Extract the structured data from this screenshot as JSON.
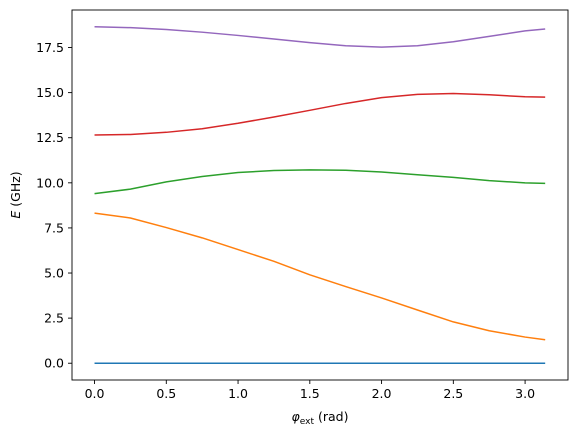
{
  "chart_data": {
    "type": "line",
    "xlabel": {
      "symbol": "φ",
      "subscript": "ext",
      "unit": "(rad)"
    },
    "ylabel": {
      "symbol": "E",
      "unit": "(GHz)"
    },
    "x": [
      0,
      0.25,
      0.5,
      0.75,
      1.0,
      1.25,
      1.5,
      1.75,
      2.0,
      2.25,
      2.5,
      2.75,
      3.0,
      3.14
    ],
    "series": [
      {
        "color": "#1f77b4",
        "values": [
          0,
          0,
          0,
          0,
          0,
          0,
          0,
          0,
          0,
          0,
          0,
          0,
          0,
          0
        ]
      },
      {
        "color": "#ff7f0e",
        "values": [
          8.32,
          8.05,
          7.52,
          6.95,
          6.3,
          5.65,
          4.9,
          4.25,
          3.62,
          2.95,
          2.29,
          1.8,
          1.45,
          1.3
        ]
      },
      {
        "color": "#2ca02c",
        "values": [
          9.4,
          9.65,
          10.05,
          10.35,
          10.57,
          10.68,
          10.72,
          10.7,
          10.6,
          10.45,
          10.3,
          10.12,
          10.0,
          9.97
        ]
      },
      {
        "color": "#d62728",
        "values": [
          12.65,
          12.68,
          12.8,
          13.0,
          13.3,
          13.65,
          14.02,
          14.4,
          14.72,
          14.9,
          14.95,
          14.88,
          14.77,
          14.75
        ]
      },
      {
        "color": "#9467bd",
        "values": [
          18.65,
          18.6,
          18.5,
          18.35,
          18.17,
          17.97,
          17.77,
          17.6,
          17.52,
          17.6,
          17.82,
          18.12,
          18.42,
          18.53
        ]
      }
    ],
    "xlim": [
      -0.157,
      3.299
    ],
    "ylim": [
      -0.93,
      19.58
    ],
    "xticks": [
      {
        "value": 0,
        "label": "0.0"
      },
      0.5,
      {
        "value": 1,
        "label": "1.0"
      },
      1.5,
      {
        "value": 2,
        "label": "2.0"
      },
      2.5,
      {
        "value": 3,
        "label": "3.0"
      }
    ],
    "yticks": [
      {
        "value": 0,
        "label": "0.0"
      },
      2.5,
      {
        "value": 5,
        "label": "5.0"
      },
      7.5,
      {
        "value": 10,
        "label": "10.0"
      },
      12.5,
      {
        "value": 15,
        "label": "15.0"
      },
      17.5
    ],
    "grid": false
  }
}
